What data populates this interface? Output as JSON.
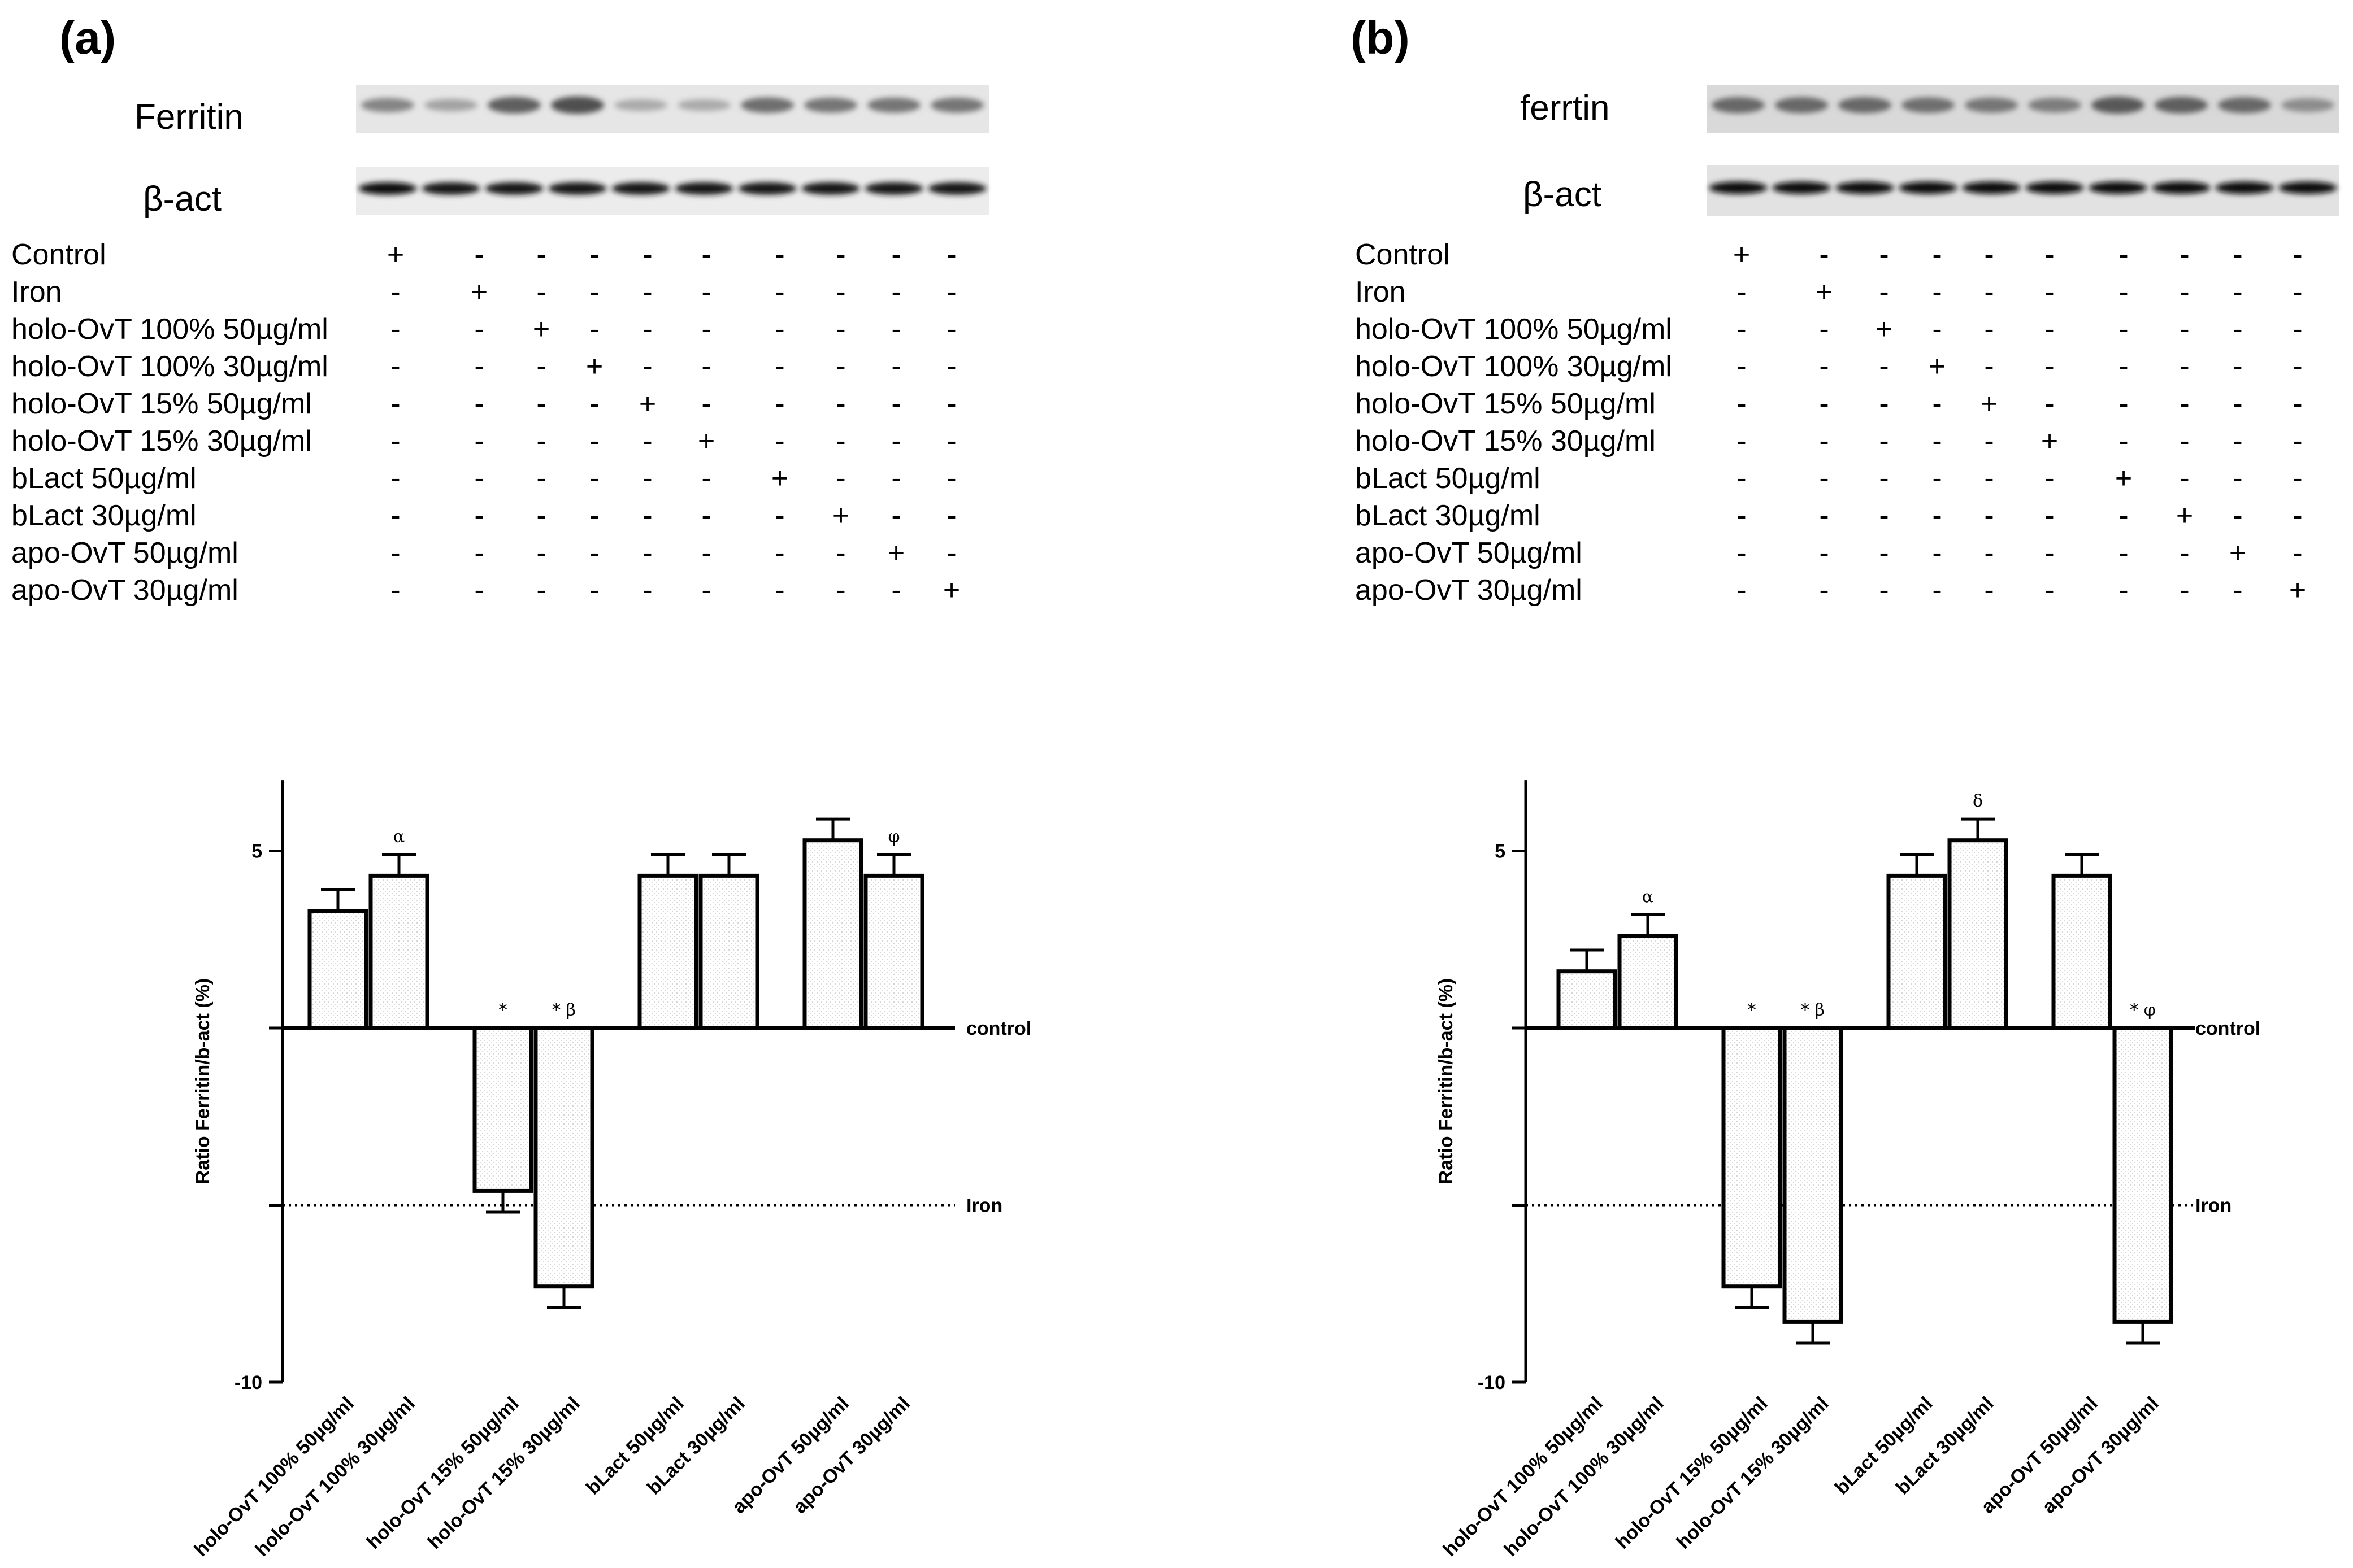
{
  "panels": [
    {
      "letter": "(a)",
      "blot_labels": [
        "Ferritin",
        "β-act"
      ],
      "ferritin_band_intensity": [
        0.45,
        0.25,
        0.7,
        0.8,
        0.2,
        0.2,
        0.6,
        0.55,
        0.55,
        0.55
      ],
      "beta_act_band_intensity": [
        0.95,
        0.9,
        0.9,
        0.9,
        0.9,
        0.9,
        0.9,
        0.9,
        0.9,
        0.9
      ],
      "treatments": [
        {
          "label": "Control",
          "signs": [
            "+",
            "-",
            "-",
            "-",
            "-",
            "-",
            "-",
            "-",
            "-",
            "-"
          ]
        },
        {
          "label": "Iron",
          "signs": [
            "-",
            "+",
            "-",
            "-",
            "-",
            "-",
            "-",
            "-",
            "-",
            "-"
          ]
        },
        {
          "label": "holo-OvT 100% 50µg/ml",
          "signs": [
            "-",
            "-",
            "+",
            "-",
            "-",
            "-",
            "-",
            "-",
            "-",
            "-"
          ]
        },
        {
          "label": "holo-OvT 100% 30µg/ml",
          "signs": [
            "-",
            "-",
            "-",
            "+",
            "-",
            "-",
            "-",
            "-",
            "-",
            "-"
          ]
        },
        {
          "label": "holo-OvT 15% 50µg/ml",
          "signs": [
            "-",
            "-",
            "-",
            "-",
            "+",
            "-",
            "-",
            "-",
            "-",
            "-"
          ]
        },
        {
          "label": "holo-OvT 15% 30µg/ml",
          "signs": [
            "-",
            "-",
            "-",
            "-",
            "-",
            "+",
            "-",
            "-",
            "-",
            "-"
          ]
        },
        {
          "label": "bLact 50µg/ml",
          "signs": [
            "-",
            "-",
            "-",
            "-",
            "-",
            "-",
            "+",
            "-",
            "-",
            "-"
          ]
        },
        {
          "label": "bLact 30µg/ml",
          "signs": [
            "-",
            "-",
            "-",
            "-",
            "-",
            "-",
            "-",
            "+",
            "-",
            "-"
          ]
        },
        {
          "label": "apo-OvT 50µg/ml",
          "signs": [
            "-",
            "-",
            "-",
            "-",
            "-",
            "-",
            "-",
            "-",
            "+",
            "-"
          ]
        },
        {
          "label": "apo-OvT 30µg/ml",
          "signs": [
            "-",
            "-",
            "-",
            "-",
            "-",
            "-",
            "-",
            "-",
            "-",
            "+"
          ]
        }
      ],
      "chart_data": {
        "type": "bar",
        "ylabel": "Ratio Ferritin/b-act (%)",
        "ylim": [
          -10,
          7
        ],
        "yticks": [
          5,
          -10
        ],
        "ytick_labels": [
          "5",
          "-10"
        ],
        "reference_lines": [
          {
            "label": "control",
            "value": 0,
            "style": "solid"
          },
          {
            "label": "Iron",
            "value": -5,
            "style": "dotted"
          }
        ],
        "categories": [
          "holo-OvT 100% 50µg/ml",
          "holo-OvT 100% 30µg/ml",
          "holo-OvT 15% 50µg/ml",
          "holo-OvT 15% 30µg/ml",
          "bLact 50µg/ml",
          "bLact 30µg/ml",
          "apo-OvT 50µg/ml",
          "apo-OvT 30µg/ml"
        ],
        "values": [
          3.3,
          4.3,
          -4.6,
          -7.3,
          4.3,
          4.3,
          5.3,
          4.3
        ],
        "errors": [
          0.6,
          0.6,
          0.6,
          0.6,
          0.6,
          0.6,
          0.6,
          0.6
        ],
        "annotations": [
          "",
          "α",
          "*",
          "* β",
          "",
          "",
          "",
          "φ"
        ]
      }
    },
    {
      "letter": "(b)",
      "blot_labels": [
        "ferrtin",
        "β-act"
      ],
      "ferritin_band_intensity": [
        0.65,
        0.65,
        0.65,
        0.6,
        0.55,
        0.5,
        0.75,
        0.7,
        0.65,
        0.4
      ],
      "beta_act_band_intensity": [
        0.95,
        0.95,
        0.95,
        0.95,
        0.95,
        0.95,
        0.95,
        0.95,
        0.95,
        0.95
      ],
      "treatments": [
        {
          "label": "Control",
          "signs": [
            "+",
            "-",
            "-",
            "-",
            "-",
            "-",
            "-",
            "-",
            "-",
            "-"
          ]
        },
        {
          "label": "Iron",
          "signs": [
            "-",
            "+",
            "-",
            "-",
            "-",
            "-",
            "-",
            "-",
            "-",
            "-"
          ]
        },
        {
          "label": "holo-OvT 100% 50µg/ml",
          "signs": [
            "-",
            "-",
            "+",
            "-",
            "-",
            "-",
            "-",
            "-",
            "-",
            "-"
          ]
        },
        {
          "label": "holo-OvT 100% 30µg/ml",
          "signs": [
            "-",
            "-",
            "-",
            "+",
            "-",
            "-",
            "-",
            "-",
            "-",
            "-"
          ]
        },
        {
          "label": "holo-OvT 15% 50µg/ml",
          "signs": [
            "-",
            "-",
            "-",
            "-",
            "+",
            "-",
            "-",
            "-",
            "-",
            "-"
          ]
        },
        {
          "label": "holo-OvT 15% 30µg/ml",
          "signs": [
            "-",
            "-",
            "-",
            "-",
            "-",
            "+",
            "-",
            "-",
            "-",
            "-"
          ]
        },
        {
          "label": "bLact 50µg/ml",
          "signs": [
            "-",
            "-",
            "-",
            "-",
            "-",
            "-",
            "+",
            "-",
            "-",
            "-"
          ]
        },
        {
          "label": "bLact 30µg/ml",
          "signs": [
            "-",
            "-",
            "-",
            "-",
            "-",
            "-",
            "-",
            "+",
            "-",
            "-"
          ]
        },
        {
          "label": "apo-OvT 50µg/ml",
          "signs": [
            "-",
            "-",
            "-",
            "-",
            "-",
            "-",
            "-",
            "-",
            "+",
            "-"
          ]
        },
        {
          "label": "apo-OvT 30µg/ml",
          "signs": [
            "-",
            "-",
            "-",
            "-",
            "-",
            "-",
            "-",
            "-",
            "-",
            "+"
          ]
        }
      ],
      "chart_data": {
        "type": "bar",
        "ylabel": "Ratio Ferritin/b-act (%)",
        "ylim": [
          -10,
          7
        ],
        "yticks": [
          5,
          -10
        ],
        "ytick_labels": [
          "5",
          "-10"
        ],
        "reference_lines": [
          {
            "label": "control",
            "value": 0,
            "style": "solid"
          },
          {
            "label": "Iron",
            "value": -5,
            "style": "dotted"
          }
        ],
        "categories": [
          "holo-OvT 100% 50µg/ml",
          "holo-OvT 100% 30µg/ml",
          "holo-OvT 15% 50µg/ml",
          "holo-OvT 15% 30µg/ml",
          "bLact 50µg/ml",
          "bLact 30µg/ml",
          "apo-OvT 50µg/ml",
          "apo-OvT 30µg/ml"
        ],
        "values": [
          1.6,
          2.6,
          -7.3,
          -8.3,
          4.3,
          5.3,
          4.3,
          -8.3
        ],
        "errors": [
          0.6,
          0.6,
          0.6,
          0.6,
          0.6,
          0.6,
          0.6,
          0.6
        ],
        "annotations": [
          "",
          "α",
          "*",
          "* β",
          "",
          "δ",
          "",
          "* φ"
        ]
      }
    }
  ]
}
